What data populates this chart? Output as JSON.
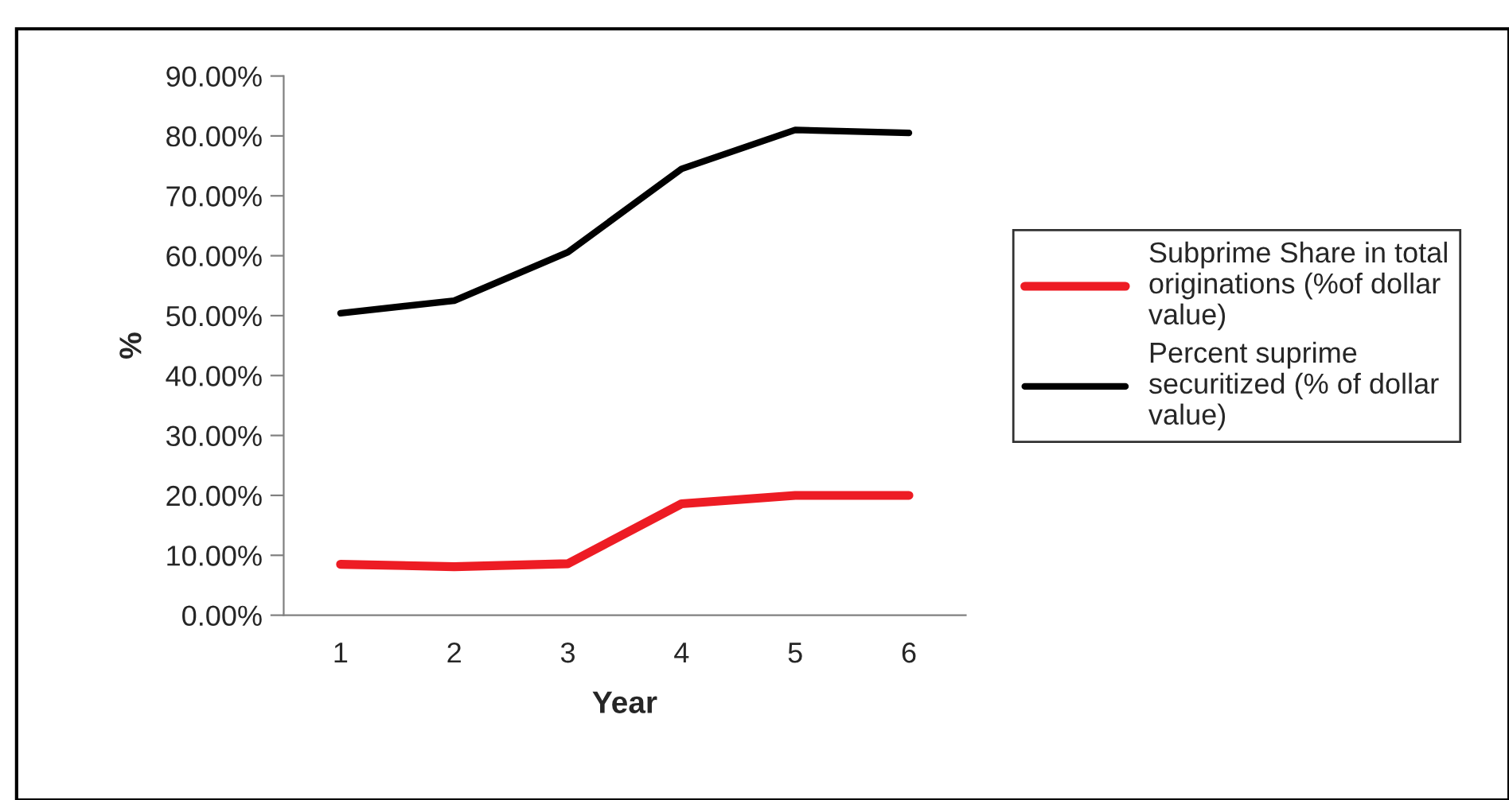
{
  "chart_data": {
    "type": "line",
    "xlabel": "Year",
    "ylabel": "%",
    "categories": [
      "1",
      "2",
      "3",
      "4",
      "5",
      "6"
    ],
    "series": [
      {
        "name": "Subprime Share in total originations (%of dollar value)",
        "color": "#ed1c24",
        "values": [
          8.5,
          8.1,
          8.6,
          18.6,
          20.0,
          20.0
        ]
      },
      {
        "name": "Percent suprime securitized (% of dollar value)",
        "color": "#000000",
        "values": [
          50.4,
          52.5,
          60.6,
          74.5,
          81.0,
          80.5
        ]
      }
    ],
    "ylim": [
      0,
      90
    ],
    "yticks": [
      {
        "value": 0,
        "label": "0.00%"
      },
      {
        "value": 10,
        "label": "10.00%"
      },
      {
        "value": 20,
        "label": "20.00%"
      },
      {
        "value": 30,
        "label": "30.00%"
      },
      {
        "value": 40,
        "label": "40.00%"
      },
      {
        "value": 50,
        "label": "50.00%"
      },
      {
        "value": 60,
        "label": "60.00%"
      },
      {
        "value": 70,
        "label": "70.00%"
      },
      {
        "value": 80,
        "label": "80.00%"
      },
      {
        "value": 90,
        "label": "90.00%"
      }
    ],
    "grid": false,
    "legend": "right",
    "marker": "none",
    "line_style": "solid"
  }
}
